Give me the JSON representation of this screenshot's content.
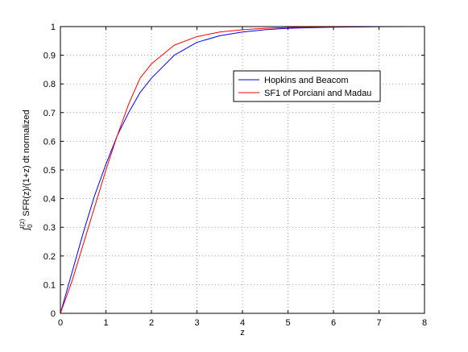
{
  "chart_data": {
    "type": "line",
    "title": "",
    "xlabel": "z",
    "ylabel_prefix": "∫",
    "ylabel_sup": "t(z)",
    "ylabel_sub": "0",
    "ylabel_text": " SFR(z)/(1+z) dt normalized",
    "xlim": [
      0,
      8
    ],
    "ylim": [
      0,
      1
    ],
    "xticks": [
      "0",
      "1",
      "2",
      "3",
      "4",
      "5",
      "6",
      "7",
      "8"
    ],
    "yticks": [
      "0",
      "0.1",
      "0.2",
      "0.3",
      "0.4",
      "0.5",
      "0.6",
      "0.7",
      "0.8",
      "0.9",
      "1"
    ],
    "grid": true,
    "legend_position": "upper-right-inside",
    "x": [
      0,
      0.25,
      0.5,
      0.75,
      1,
      1.25,
      1.5,
      1.75,
      2,
      2.5,
      3,
      3.5,
      4,
      4.5,
      5,
      6,
      7,
      8
    ],
    "series": [
      {
        "name": "Hopkins and Beacom",
        "color": "#0000ff",
        "values": [
          0,
          0.14,
          0.28,
          0.41,
          0.52,
          0.62,
          0.7,
          0.77,
          0.82,
          0.9,
          0.945,
          0.968,
          0.981,
          0.989,
          0.994,
          0.998,
          0.9995,
          1.0
        ]
      },
      {
        "name": "SF1 of Porciani and Madau",
        "color": "#ff0000",
        "values": [
          0,
          0.11,
          0.24,
          0.37,
          0.5,
          0.62,
          0.73,
          0.82,
          0.87,
          0.935,
          0.965,
          0.981,
          0.989,
          0.994,
          0.997,
          0.999,
          1.0,
          1.0
        ]
      }
    ]
  }
}
